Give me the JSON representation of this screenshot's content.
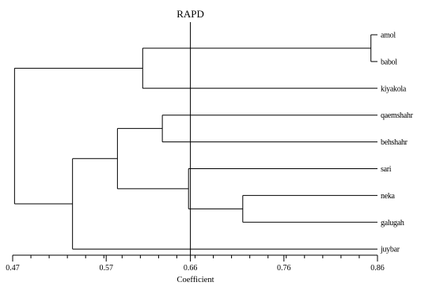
{
  "chart_data": {
    "type": "dendrogram",
    "cut_line": {
      "label": "RAPD",
      "value": 0.66
    },
    "xlabel": "Coefficient",
    "xlim": [
      0.47,
      0.86
    ],
    "major_ticks": [
      0.47,
      0.57,
      0.66,
      0.76,
      0.86
    ],
    "tick_labels": [
      "0.47",
      "0.57",
      "0.66",
      "0.76",
      "0.86"
    ],
    "minor_tick_step": 0.0195,
    "leaves": [
      "amol",
      "babol",
      "kiyakola",
      "qaemshahr",
      "behshahr",
      "sari",
      "neka",
      "galugah",
      "juybar"
    ],
    "merges": [
      {
        "id": "m1",
        "children": [
          "amol",
          "babol"
        ],
        "height": 0.853
      },
      {
        "id": "m2",
        "children": [
          "m1",
          "kiyakola"
        ],
        "height": 0.609
      },
      {
        "id": "m3",
        "children": [
          "qaemshahr",
          "behshahr"
        ],
        "height": 0.63
      },
      {
        "id": "m4",
        "children": [
          "neka",
          "galugah"
        ],
        "height": 0.716
      },
      {
        "id": "m5",
        "children": [
          "sari",
          "m4"
        ],
        "height": 0.658
      },
      {
        "id": "m6",
        "children": [
          "m3",
          "m5"
        ],
        "height": 0.582
      },
      {
        "id": "m7",
        "children": [
          "m6",
          "juybar"
        ],
        "height": 0.534
      },
      {
        "id": "m8",
        "children": [
          "m2",
          "m7"
        ],
        "height": 0.472
      }
    ],
    "colors": {
      "line": "#000000",
      "background": "#ffffff"
    }
  }
}
